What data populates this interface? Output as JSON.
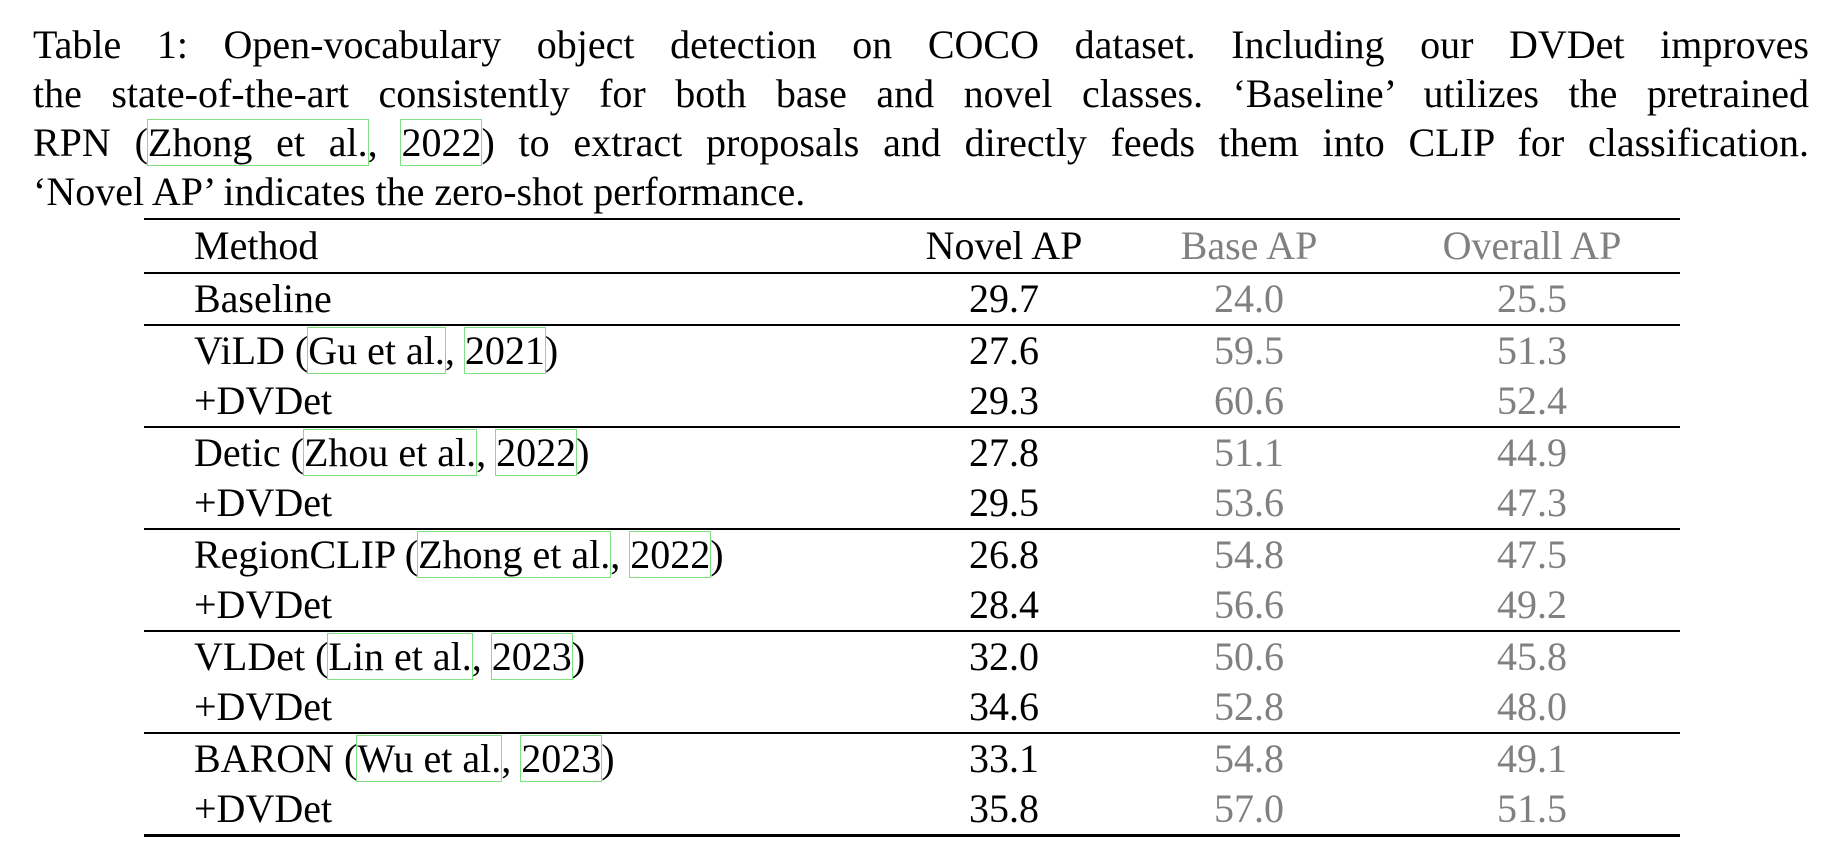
{
  "caption": {
    "line1": "Table 1: Open-vocabulary object detection on COCO dataset. Including our DVDet improves",
    "line2": "the state-of-the-art consistently for both base and novel classes. ‘Baseline’ utilizes the pretrained",
    "line3_pre": "RPN (",
    "line3_cite_author": "Zhong et al.",
    "line3_comma": ", ",
    "line3_cite_year": "2022",
    "line3_post": ") to extract proposals and directly feeds them into CLIP for classification.",
    "line4": "‘Novel AP’ indicates the zero-shot performance."
  },
  "table": {
    "headers": {
      "method": "Method",
      "novel": "Novel AP",
      "base": "Base AP",
      "overall": "Overall AP"
    },
    "baseline": {
      "method": "Baseline",
      "novel": "29.7",
      "base": "24.0",
      "overall": "25.5"
    },
    "groups": [
      {
        "name": "ViLD",
        "cite_author": "Gu et al.",
        "cite_year": "2021",
        "novel": "27.6",
        "base": "59.5",
        "overall": "51.3",
        "plus_label": "+DVDet",
        "plus_novel": "29.3",
        "plus_base": "60.6",
        "plus_overall": "52.4"
      },
      {
        "name": "Detic",
        "cite_author": "Zhou et al.",
        "cite_year": "2022",
        "novel": "27.8",
        "base": "51.1",
        "overall": "44.9",
        "plus_label": "+DVDet",
        "plus_novel": "29.5",
        "plus_base": "53.6",
        "plus_overall": "47.3"
      },
      {
        "name": "RegionCLIP",
        "cite_author": "Zhong et al.",
        "cite_year": "2022",
        "novel": "26.8",
        "base": "54.8",
        "overall": "47.5",
        "plus_label": "+DVDet",
        "plus_novel": "28.4",
        "plus_base": "56.6",
        "plus_overall": "49.2"
      },
      {
        "name": "VLDet",
        "cite_author": "Lin et al.",
        "cite_year": "2023",
        "novel": "32.0",
        "base": "50.6",
        "overall": "45.8",
        "plus_label": "+DVDet",
        "plus_novel": "34.6",
        "plus_base": "52.8",
        "plus_overall": "48.0"
      },
      {
        "name": "BARON",
        "cite_author": "Wu et al.",
        "cite_year": "2023",
        "novel": "33.1",
        "base": "54.8",
        "overall": "49.1",
        "plus_label": "+DVDet",
        "plus_novel": "35.8",
        "plus_base": "57.0",
        "plus_overall": "51.5"
      }
    ]
  },
  "colors": {
    "text": "#000000",
    "muted_columns": "#808080",
    "citation_box": "#7fe07f"
  }
}
